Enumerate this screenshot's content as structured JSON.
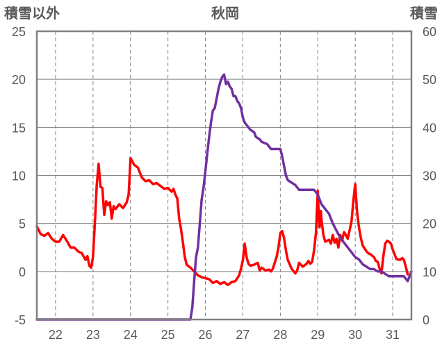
{
  "chart_data": {
    "type": "line",
    "title": "秋岡",
    "ylabel_left": "積雪以外",
    "ylabel_right": "積雪",
    "xlim": [
      21.5,
      31.5
    ],
    "y_left_lim": [
      -5,
      25
    ],
    "y_right_lim": [
      0,
      60
    ],
    "x_ticks": [
      22,
      23,
      24,
      25,
      26,
      27,
      28,
      29,
      30,
      31
    ],
    "y_left_ticks": [
      -5,
      0,
      5,
      10,
      15,
      20,
      25
    ],
    "y_right_ticks": [
      0,
      10,
      20,
      30,
      40,
      50,
      60
    ],
    "grid": true,
    "series": [
      {
        "color": "#ff0000",
        "axis": "left",
        "points": [
          [
            21.5,
            4.7
          ],
          [
            21.6,
            3.9
          ],
          [
            21.7,
            3.7
          ],
          [
            21.8,
            4.0
          ],
          [
            21.9,
            3.4
          ],
          [
            22.0,
            3.1
          ],
          [
            22.1,
            3.1
          ],
          [
            22.2,
            3.8
          ],
          [
            22.3,
            3.2
          ],
          [
            22.4,
            2.5
          ],
          [
            22.5,
            2.5
          ],
          [
            22.6,
            2.1
          ],
          [
            22.7,
            1.9
          ],
          [
            22.8,
            1.2
          ],
          [
            22.85,
            1.6
          ],
          [
            22.9,
            0.6
          ],
          [
            22.95,
            0.4
          ],
          [
            23.0,
            1.5
          ],
          [
            23.05,
            5.0
          ],
          [
            23.1,
            9.0
          ],
          [
            23.15,
            11.2
          ],
          [
            23.2,
            8.8
          ],
          [
            23.25,
            8.7
          ],
          [
            23.3,
            5.9
          ],
          [
            23.35,
            7.3
          ],
          [
            23.4,
            6.9
          ],
          [
            23.45,
            7.2
          ],
          [
            23.5,
            5.5
          ],
          [
            23.55,
            6.8
          ],
          [
            23.6,
            6.5
          ],
          [
            23.7,
            7.0
          ],
          [
            23.8,
            6.6
          ],
          [
            23.9,
            7.2
          ],
          [
            23.95,
            8.0
          ],
          [
            24.0,
            11.8
          ],
          [
            24.1,
            11.1
          ],
          [
            24.2,
            10.8
          ],
          [
            24.3,
            9.8
          ],
          [
            24.4,
            9.4
          ],
          [
            24.5,
            9.5
          ],
          [
            24.6,
            9.1
          ],
          [
            24.7,
            9.2
          ],
          [
            24.8,
            8.9
          ],
          [
            24.9,
            8.6
          ],
          [
            25.0,
            8.7
          ],
          [
            25.1,
            8.3
          ],
          [
            25.15,
            8.6
          ],
          [
            25.2,
            8.0
          ],
          [
            25.25,
            7.6
          ],
          [
            25.3,
            5.5
          ],
          [
            25.35,
            4.4
          ],
          [
            25.4,
            3.0
          ],
          [
            25.45,
            1.5
          ],
          [
            25.5,
            0.7
          ],
          [
            25.6,
            0.4
          ],
          [
            25.7,
            0.0
          ],
          [
            25.8,
            -0.4
          ],
          [
            25.9,
            -0.6
          ],
          [
            26.0,
            -0.7
          ],
          [
            26.1,
            -0.8
          ],
          [
            26.2,
            -1.2
          ],
          [
            26.3,
            -1.0
          ],
          [
            26.4,
            -1.3
          ],
          [
            26.5,
            -1.1
          ],
          [
            26.6,
            -1.4
          ],
          [
            26.7,
            -1.1
          ],
          [
            26.8,
            -1.0
          ],
          [
            26.9,
            -0.4
          ],
          [
            26.95,
            0.3
          ],
          [
            27.0,
            1.2
          ],
          [
            27.05,
            2.9
          ],
          [
            27.1,
            1.5
          ],
          [
            27.15,
            0.8
          ],
          [
            27.2,
            0.6
          ],
          [
            27.3,
            0.7
          ],
          [
            27.4,
            0.9
          ],
          [
            27.45,
            0.1
          ],
          [
            27.5,
            0.4
          ],
          [
            27.6,
            0.1
          ],
          [
            27.7,
            0.2
          ],
          [
            27.75,
            0.0
          ],
          [
            27.8,
            0.3
          ],
          [
            27.85,
            0.9
          ],
          [
            27.9,
            1.5
          ],
          [
            27.95,
            2.5
          ],
          [
            28.0,
            4.0
          ],
          [
            28.05,
            4.2
          ],
          [
            28.1,
            3.5
          ],
          [
            28.15,
            2.2
          ],
          [
            28.2,
            1.2
          ],
          [
            28.3,
            0.3
          ],
          [
            28.4,
            -0.2
          ],
          [
            28.45,
            0.1
          ],
          [
            28.5,
            0.9
          ],
          [
            28.6,
            0.5
          ],
          [
            28.7,
            0.8
          ],
          [
            28.75,
            1.1
          ],
          [
            28.8,
            0.8
          ],
          [
            28.85,
            1.0
          ],
          [
            28.9,
            2.2
          ],
          [
            28.95,
            4.0
          ],
          [
            29.0,
            8.4
          ],
          [
            29.02,
            6.5
          ],
          [
            29.05,
            4.6
          ],
          [
            29.08,
            6.3
          ],
          [
            29.1,
            5.4
          ],
          [
            29.15,
            3.8
          ],
          [
            29.2,
            3.1
          ],
          [
            29.3,
            3.3
          ],
          [
            29.35,
            2.9
          ],
          [
            29.4,
            3.8
          ],
          [
            29.45,
            3.0
          ],
          [
            29.5,
            3.4
          ],
          [
            29.55,
            2.5
          ],
          [
            29.6,
            3.8
          ],
          [
            29.65,
            3.2
          ],
          [
            29.7,
            4.1
          ],
          [
            29.75,
            3.8
          ],
          [
            29.8,
            3.4
          ],
          [
            29.85,
            4.3
          ],
          [
            29.9,
            5.2
          ],
          [
            29.95,
            7.4
          ],
          [
            30.0,
            9.1
          ],
          [
            30.05,
            6.2
          ],
          [
            30.1,
            4.6
          ],
          [
            30.15,
            3.5
          ],
          [
            30.2,
            2.7
          ],
          [
            30.3,
            2.1
          ],
          [
            30.35,
            1.9
          ],
          [
            30.4,
            1.8
          ],
          [
            30.5,
            1.5
          ],
          [
            30.55,
            1.1
          ],
          [
            30.6,
            1.0
          ],
          [
            30.65,
            0.3
          ],
          [
            30.7,
            -0.2
          ],
          [
            30.75,
            1.6
          ],
          [
            30.8,
            2.9
          ],
          [
            30.85,
            3.2
          ],
          [
            30.9,
            3.1
          ],
          [
            30.95,
            2.9
          ],
          [
            31.0,
            2.3
          ],
          [
            31.05,
            1.8
          ],
          [
            31.1,
            1.3
          ],
          [
            31.2,
            1.2
          ],
          [
            31.25,
            1.4
          ],
          [
            31.3,
            1.2
          ],
          [
            31.35,
            0.5
          ],
          [
            31.4,
            -0.3
          ]
        ]
      },
      {
        "color": "#7030a0",
        "axis": "right",
        "points": [
          [
            21.5,
            0.0
          ],
          [
            25.6,
            0.0
          ],
          [
            25.65,
            2.5
          ],
          [
            25.7,
            8.0
          ],
          [
            25.75,
            13.0
          ],
          [
            25.8,
            15.0
          ],
          [
            25.85,
            20.0
          ],
          [
            25.9,
            25.0
          ],
          [
            25.95,
            27.5
          ],
          [
            26.0,
            31.0
          ],
          [
            26.05,
            34.5
          ],
          [
            26.1,
            38.0
          ],
          [
            26.15,
            41.0
          ],
          [
            26.2,
            43.5
          ],
          [
            26.25,
            44.0
          ],
          [
            26.3,
            46.0
          ],
          [
            26.35,
            48.0
          ],
          [
            26.4,
            49.5
          ],
          [
            26.45,
            50.5
          ],
          [
            26.5,
            51.0
          ],
          [
            26.55,
            49.0
          ],
          [
            26.6,
            49.5
          ],
          [
            26.65,
            48.5
          ],
          [
            26.7,
            48.0
          ],
          [
            26.75,
            46.5
          ],
          [
            26.8,
            46.5
          ],
          [
            26.85,
            45.5
          ],
          [
            26.9,
            45.0
          ],
          [
            26.95,
            44.0
          ],
          [
            27.0,
            42.0
          ],
          [
            27.05,
            41.0
          ],
          [
            27.1,
            40.5
          ],
          [
            27.15,
            40.0
          ],
          [
            27.2,
            39.5
          ],
          [
            27.3,
            39.0
          ],
          [
            27.35,
            38.0
          ],
          [
            27.45,
            37.5
          ],
          [
            27.5,
            37.0
          ],
          [
            27.65,
            36.5
          ],
          [
            27.75,
            35.5
          ],
          [
            28.0,
            35.5
          ],
          [
            28.05,
            34.0
          ],
          [
            28.1,
            32.0
          ],
          [
            28.15,
            30.0
          ],
          [
            28.2,
            29.0
          ],
          [
            28.3,
            28.5
          ],
          [
            28.4,
            28.0
          ],
          [
            28.5,
            27.0
          ],
          [
            28.9,
            27.0
          ],
          [
            28.95,
            26.5
          ],
          [
            29.0,
            26.0
          ],
          [
            29.05,
            25.0
          ],
          [
            29.1,
            24.0
          ],
          [
            29.2,
            23.0
          ],
          [
            29.3,
            22.0
          ],
          [
            29.4,
            20.0
          ],
          [
            29.5,
            18.5
          ],
          [
            29.6,
            17.0
          ],
          [
            29.7,
            16.0
          ],
          [
            29.8,
            15.0
          ],
          [
            29.9,
            14.0
          ],
          [
            30.0,
            13.0
          ],
          [
            30.1,
            12.5
          ],
          [
            30.2,
            11.5
          ],
          [
            30.3,
            11.0
          ],
          [
            30.4,
            10.5
          ],
          [
            30.5,
            10.5
          ],
          [
            30.6,
            10.0
          ],
          [
            30.7,
            10.0
          ],
          [
            30.8,
            9.5
          ],
          [
            30.9,
            9.0
          ],
          [
            31.0,
            9.0
          ],
          [
            31.3,
            9.0
          ],
          [
            31.4,
            8.0
          ],
          [
            31.5,
            10.0
          ]
        ]
      }
    ]
  }
}
